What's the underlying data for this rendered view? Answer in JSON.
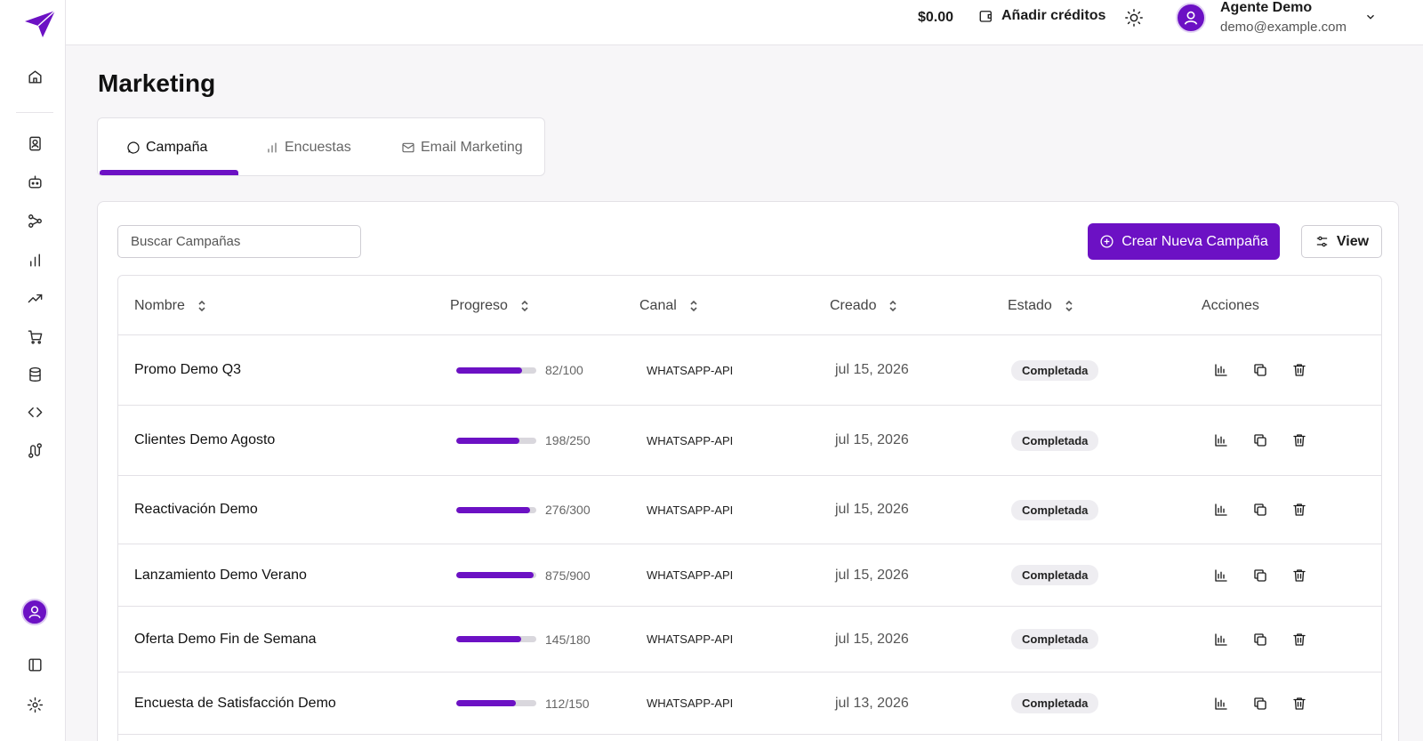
{
  "header": {
    "balance": "$0.00",
    "add_credits_label": "Añadir créditos",
    "user_name": "Agente Demo",
    "user_email": "demo@example.com"
  },
  "page": {
    "title": "Marketing"
  },
  "tabs": [
    {
      "label": "Campaña",
      "icon": "message-circle-icon",
      "active": true
    },
    {
      "label": "Encuestas",
      "icon": "bar-chart-icon",
      "active": false
    },
    {
      "label": "Email Marketing",
      "icon": "mail-icon",
      "active": false
    }
  ],
  "toolbar": {
    "search_placeholder": "Buscar Campañas",
    "create_label": "Crear Nueva Campaña",
    "view_label": "View"
  },
  "table": {
    "columns": [
      "Nombre",
      "Progreso",
      "Canal",
      "Creado",
      "Estado",
      "Acciones"
    ],
    "rows": [
      {
        "name": "Promo Demo Q3",
        "progress_text": "82/100",
        "progress": 0.82,
        "canal": "WHATSAPP-API",
        "created": "jul 15, 2026",
        "status": "Completada"
      },
      {
        "name": "Clientes Demo Agosto",
        "progress_text": "198/250",
        "progress": 0.792,
        "canal": "WHATSAPP-API",
        "created": "jul 15, 2026",
        "status": "Completada"
      },
      {
        "name": "Reactivación Demo",
        "progress_text": "276/300",
        "progress": 0.92,
        "canal": "WHATSAPP-API",
        "created": "jul 15, 2026",
        "status": "Completada"
      },
      {
        "name": "Lanzamiento Demo Verano",
        "progress_text": "875/900",
        "progress": 0.972,
        "canal": "WHATSAPP-API",
        "created": "jul 15, 2026",
        "status": "Completada"
      },
      {
        "name": "Oferta Demo Fin de Semana",
        "progress_text": "145/180",
        "progress": 0.806,
        "canal": "WHATSAPP-API",
        "created": "jul 15, 2026",
        "status": "Completada"
      },
      {
        "name": "Encuesta de Satisfacción Demo",
        "progress_text": "112/150",
        "progress": 0.747,
        "canal": "WHATSAPP-API",
        "created": "jul 13, 2026",
        "status": "Completada"
      }
    ]
  },
  "sidebar": {
    "icons": [
      "home-icon",
      "contacts-icon",
      "bot-icon",
      "workflow-icon",
      "bar-chart-icon",
      "trending-up-icon",
      "cart-icon",
      "database-icon",
      "code-icon",
      "route-icon",
      "user-icon",
      "panel-icon",
      "settings-icon"
    ]
  },
  "colors": {
    "accent": "#6c11c4",
    "background": "#f7f6f8",
    "badge_bg": "#eeedf1"
  }
}
